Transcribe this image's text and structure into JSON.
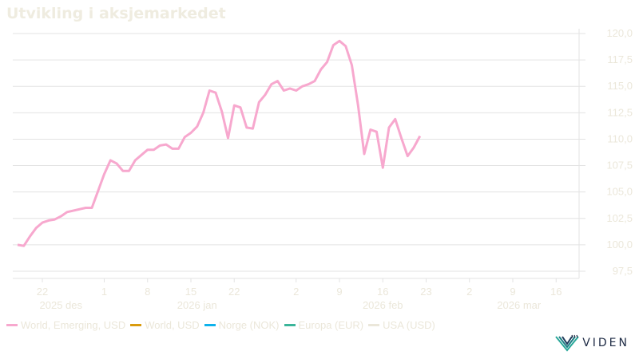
{
  "title": "Utvikling i aksjemarkedet",
  "brand": "VIDEN",
  "chart_data": {
    "type": "line",
    "title": "Utvikling i aksjemarkedet",
    "xlabel": "",
    "ylabel": "",
    "ylim": [
      97.5,
      120.0
    ],
    "y_ticks": [
      "120,0",
      "117,5",
      "115,0",
      "112,5",
      "110,0",
      "107,5",
      "105,0",
      "102,5",
      "100,0",
      "97,5"
    ],
    "y_tick_values": [
      120.0,
      117.5,
      115.0,
      112.5,
      110.0,
      107.5,
      105.0,
      102.5,
      100.0,
      97.5
    ],
    "y_axis_side": "right",
    "grid": true,
    "x_ticks": [
      {
        "label": "22",
        "day": 4
      },
      {
        "label": "1",
        "day": 14
      },
      {
        "label": "8",
        "day": 21
      },
      {
        "label": "15",
        "day": 28
      },
      {
        "label": "22",
        "day": 35
      },
      {
        "label": "2",
        "day": 45
      },
      {
        "label": "9",
        "day": 52
      },
      {
        "label": "16",
        "day": 59
      },
      {
        "label": "23",
        "day": 66
      },
      {
        "label": "2",
        "day": 73
      },
      {
        "label": "9",
        "day": 80
      },
      {
        "label": "16",
        "day": 87
      }
    ],
    "x_groups": [
      {
        "label": "2025 des",
        "day": 7
      },
      {
        "label": "2026 jan",
        "day": 29
      },
      {
        "label": "2026 feb",
        "day": 59
      },
      {
        "label": "2026 mar",
        "day": 81
      }
    ],
    "x_range": [
      0,
      90
    ],
    "legend_position": "bottom-left",
    "days": [
      0,
      1,
      2,
      3,
      4,
      5,
      6,
      7,
      8,
      11,
      12,
      13,
      14,
      15,
      16,
      17,
      18,
      19,
      20,
      21,
      22,
      23,
      24,
      25,
      26,
      27,
      28,
      29,
      30,
      31,
      32,
      33,
      34,
      35,
      36,
      37,
      38,
      39,
      40,
      41,
      42,
      43,
      44,
      45,
      46,
      47,
      48,
      49,
      50,
      51,
      52,
      53,
      54,
      55,
      56,
      57,
      58,
      59,
      60,
      61,
      62,
      63,
      64,
      65,
      66,
      67,
      68,
      69,
      70,
      71,
      72,
      73,
      74,
      75,
      76,
      77,
      78,
      79,
      80,
      81,
      82,
      83,
      84,
      85,
      86,
      87,
      88
    ],
    "series": [
      {
        "name": "World, Emerging, USD",
        "color": "#f7a8ce",
        "values": [
          100.0,
          99.9,
          100.8,
          101.6,
          102.1,
          102.3,
          102.4,
          102.7,
          103.1,
          103.5,
          103.5,
          105.1,
          106.7,
          108.0,
          107.7,
          107.0,
          107.0,
          108.0,
          108.5,
          109.0,
          109.0,
          109.4,
          109.5,
          109.1,
          109.1,
          110.2,
          110.6,
          111.2,
          112.5,
          114.6,
          114.4,
          112.6,
          110.1,
          113.2,
          113.0,
          111.1,
          111.0,
          113.5,
          114.2,
          115.2,
          115.5,
          114.6,
          114.8,
          114.6,
          115.0,
          115.2,
          115.5,
          116.6,
          117.3,
          118.9,
          119.3,
          118.8,
          117.0,
          113.2,
          108.6,
          110.9,
          110.7,
          107.3,
          111.1,
          111.9,
          110.1,
          108.4,
          109.2,
          110.3
        ],
        "x_index_map": "sparse"
      }
    ]
  },
  "legend": [
    {
      "label": "World, Emerging, USD",
      "color": "#f7a8ce"
    },
    {
      "label": "World, USD",
      "color": "#d99b0e"
    },
    {
      "label": "Norge (NOK)",
      "color": "#0eb2ec"
    },
    {
      "label": "Europa (EUR)",
      "color": "#3bb59a"
    },
    {
      "label": "USA (USD)",
      "color": "#ebe7da"
    }
  ]
}
